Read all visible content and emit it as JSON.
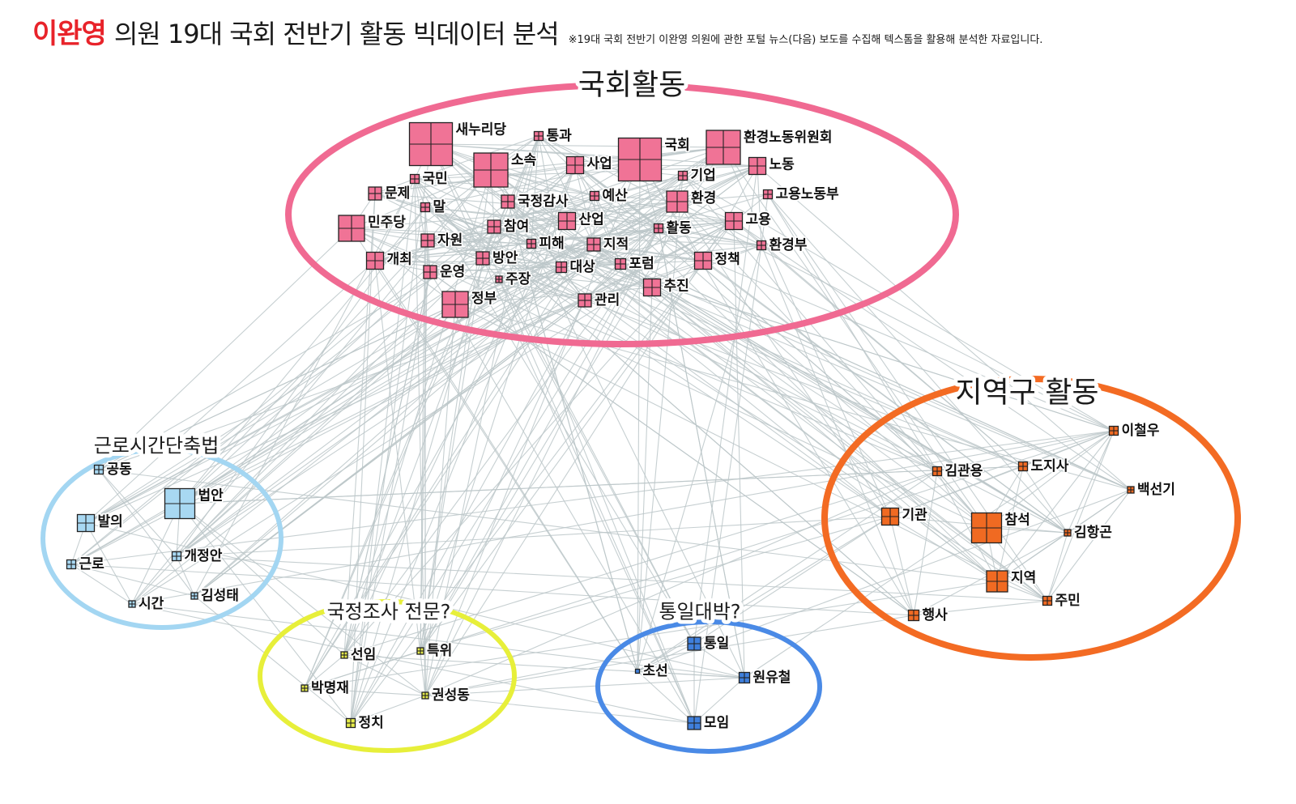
{
  "title": {
    "name": "이완영",
    "main": "의원  19대 국회 전반기 활동 빅데이터 분석",
    "note": "※19대 국회 전반기 이완영 의원에 관한 포털 뉴스(다음) 보도를 수집해 텍스톰을 활용해 분석한 자료입니다."
  },
  "clusters": [
    {
      "id": "assembly",
      "label": "국회활동",
      "color": "#f06a92",
      "node_color": "#f07396"
    },
    {
      "id": "labor",
      "label": "근로시간단축법",
      "color": "#a3d6f2",
      "node_color": "#a8d8f2"
    },
    {
      "id": "audit",
      "label": "국정조사 전문?",
      "color": "#e7ef3a",
      "node_color": "#e6ec4a"
    },
    {
      "id": "unification",
      "label": "통일대박?",
      "color": "#4a8ae6",
      "node_color": "#3f7fdc"
    },
    {
      "id": "local",
      "label": "지역구 활동",
      "color": "#f36b23",
      "node_color": "#f06a22"
    }
  ],
  "nodes": [
    {
      "label": "새누리당",
      "cluster": "assembly",
      "weight": 5
    },
    {
      "label": "통과",
      "cluster": "assembly",
      "weight": 1
    },
    {
      "label": "국회",
      "cluster": "assembly",
      "weight": 5
    },
    {
      "label": "환경노동위원회",
      "cluster": "assembly",
      "weight": 4
    },
    {
      "label": "소속",
      "cluster": "assembly",
      "weight": 4
    },
    {
      "label": "사업",
      "cluster": "assembly",
      "weight": 2
    },
    {
      "label": "노동",
      "cluster": "assembly",
      "weight": 2
    },
    {
      "label": "국민",
      "cluster": "assembly",
      "weight": 1
    },
    {
      "label": "기업",
      "cluster": "assembly",
      "weight": 1
    },
    {
      "label": "문제",
      "cluster": "assembly",
      "weight": 1.5
    },
    {
      "label": "예산",
      "cluster": "assembly",
      "weight": 1
    },
    {
      "label": "고용노동부",
      "cluster": "assembly",
      "weight": 1
    },
    {
      "label": "말",
      "cluster": "assembly",
      "weight": 1
    },
    {
      "label": "국정감사",
      "cluster": "assembly",
      "weight": 1.5
    },
    {
      "label": "환경",
      "cluster": "assembly",
      "weight": 2.5
    },
    {
      "label": "민주당",
      "cluster": "assembly",
      "weight": 3
    },
    {
      "label": "참여",
      "cluster": "assembly",
      "weight": 1.5
    },
    {
      "label": "산업",
      "cluster": "assembly",
      "weight": 2
    },
    {
      "label": "고용",
      "cluster": "assembly",
      "weight": 2
    },
    {
      "label": "자원",
      "cluster": "assembly",
      "weight": 1.5
    },
    {
      "label": "피해",
      "cluster": "assembly",
      "weight": 1
    },
    {
      "label": "지적",
      "cluster": "assembly",
      "weight": 1.5
    },
    {
      "label": "활동",
      "cluster": "assembly",
      "weight": 1
    },
    {
      "label": "환경부",
      "cluster": "assembly",
      "weight": 1
    },
    {
      "label": "개최",
      "cluster": "assembly",
      "weight": 2
    },
    {
      "label": "방안",
      "cluster": "assembly",
      "weight": 1.5
    },
    {
      "label": "정책",
      "cluster": "assembly",
      "weight": 2
    },
    {
      "label": "운영",
      "cluster": "assembly",
      "weight": 1.5
    },
    {
      "label": "대상",
      "cluster": "assembly",
      "weight": 1.2
    },
    {
      "label": "포럼",
      "cluster": "assembly",
      "weight": 1.2
    },
    {
      "label": "주장",
      "cluster": "assembly",
      "weight": 0.8
    },
    {
      "label": "추진",
      "cluster": "assembly",
      "weight": 2
    },
    {
      "label": "정부",
      "cluster": "assembly",
      "weight": 3
    },
    {
      "label": "관리",
      "cluster": "assembly",
      "weight": 1.5
    },
    {
      "label": "공동",
      "cluster": "labor",
      "weight": 1
    },
    {
      "label": "법안",
      "cluster": "labor",
      "weight": 3.5
    },
    {
      "label": "발의",
      "cluster": "labor",
      "weight": 2
    },
    {
      "label": "근로",
      "cluster": "labor",
      "weight": 1
    },
    {
      "label": "개정안",
      "cluster": "labor",
      "weight": 1
    },
    {
      "label": "시간",
      "cluster": "labor",
      "weight": 0.8
    },
    {
      "label": "김성태",
      "cluster": "labor",
      "weight": 0.8
    },
    {
      "label": "선임",
      "cluster": "audit",
      "weight": 0.8
    },
    {
      "label": "특위",
      "cluster": "audit",
      "weight": 0.8
    },
    {
      "label": "박명재",
      "cluster": "audit",
      "weight": 0.8
    },
    {
      "label": "권성동",
      "cluster": "audit",
      "weight": 0.8
    },
    {
      "label": "정치",
      "cluster": "audit",
      "weight": 1
    },
    {
      "label": "통일",
      "cluster": "unification",
      "weight": 1.5
    },
    {
      "label": "초선",
      "cluster": "unification",
      "weight": 0.3
    },
    {
      "label": "원유철",
      "cluster": "unification",
      "weight": 1.2
    },
    {
      "label": "모임",
      "cluster": "unification",
      "weight": 1.5
    },
    {
      "label": "이철우",
      "cluster": "local",
      "weight": 1
    },
    {
      "label": "김관용",
      "cluster": "local",
      "weight": 1
    },
    {
      "label": "도지사",
      "cluster": "local",
      "weight": 1
    },
    {
      "label": "백선기",
      "cluster": "local",
      "weight": 0.8
    },
    {
      "label": "기관",
      "cluster": "local",
      "weight": 2
    },
    {
      "label": "참석",
      "cluster": "local",
      "weight": 3.5
    },
    {
      "label": "김항곤",
      "cluster": "local",
      "weight": 0.8
    },
    {
      "label": "지역",
      "cluster": "local",
      "weight": 2.5
    },
    {
      "label": "주민",
      "cluster": "local",
      "weight": 1
    },
    {
      "label": "행사",
      "cluster": "local",
      "weight": 1.2
    }
  ]
}
